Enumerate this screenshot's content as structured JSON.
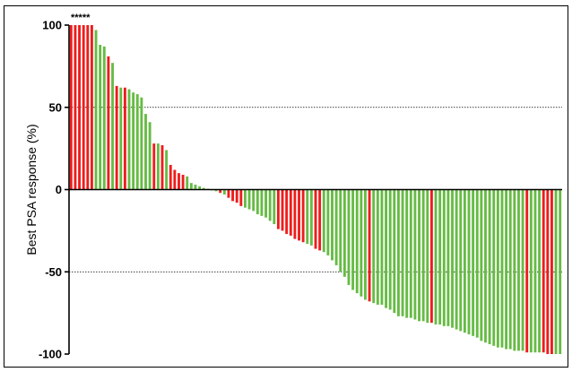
{
  "chart_data": {
    "type": "bar",
    "title": "",
    "xlabel": "",
    "ylabel": "Best PSA response (%)",
    "ylim": [
      -100,
      100
    ],
    "yticks": [
      "100",
      "50",
      "0",
      "-50",
      "-100"
    ],
    "ytick_values": [
      100,
      50,
      0,
      -50,
      -100
    ],
    "gridlines": [
      50,
      -50
    ],
    "annotation": "*****",
    "colors": {
      "red": "#ee1c1c",
      "green": "#66bb44"
    },
    "values": [
      100,
      100,
      100,
      100,
      100,
      100,
      97,
      88,
      87,
      81,
      77,
      63,
      62,
      62,
      61,
      59,
      58,
      56,
      46,
      41,
      28,
      28,
      27,
      24,
      15,
      12,
      10,
      9,
      8,
      4,
      3,
      2,
      1,
      0.5,
      -0.5,
      -1,
      -2,
      -3,
      -5,
      -7,
      -8,
      -10,
      -11,
      -12,
      -13,
      -15,
      -16,
      -17,
      -19,
      -21,
      -24,
      -25,
      -27,
      -28,
      -30,
      -31,
      -32,
      -33,
      -34,
      -36,
      -37,
      -38,
      -40,
      -43,
      -46,
      -50,
      -53,
      -58,
      -61,
      -63,
      -65,
      -67,
      -68,
      -69,
      -70,
      -70,
      -72,
      -73,
      -75,
      -77,
      -77,
      -78,
      -78,
      -79,
      -80,
      -80,
      -81,
      -81,
      -82,
      -82,
      -83,
      -83,
      -84,
      -85,
      -86,
      -87,
      -88,
      -89,
      -90,
      -92,
      -93,
      -94,
      -95,
      -96,
      -96,
      -97,
      -97,
      -98,
      -98,
      -98,
      -99,
      -99,
      -99,
      -99,
      -99,
      -100,
      -100,
      -100,
      -100
    ],
    "bar_colors": [
      "red",
      "red",
      "red",
      "red",
      "red",
      "red",
      "green",
      "green",
      "green",
      "red",
      "green",
      "red",
      "green",
      "red",
      "green",
      "green",
      "green",
      "green",
      "green",
      "green",
      "red",
      "green",
      "red",
      "green",
      "red",
      "red",
      "red",
      "red",
      "green",
      "green",
      "green",
      "green",
      "green",
      "green",
      "green",
      "green",
      "red",
      "green",
      "red",
      "red",
      "red",
      "red",
      "green",
      "green",
      "green",
      "green",
      "green",
      "green",
      "green",
      "green",
      "red",
      "red",
      "red",
      "red",
      "red",
      "red",
      "red",
      "green",
      "green",
      "red",
      "red",
      "green",
      "green",
      "green",
      "green",
      "green",
      "green",
      "green",
      "green",
      "green",
      "green",
      "green",
      "red",
      "green",
      "green",
      "green",
      "green",
      "green",
      "green",
      "green",
      "green",
      "green",
      "green",
      "green",
      "green",
      "green",
      "green",
      "red",
      "green",
      "green",
      "green",
      "green",
      "green",
      "green",
      "green",
      "green",
      "green",
      "green",
      "green",
      "green",
      "green",
      "green",
      "green",
      "green",
      "green",
      "green",
      "green",
      "green",
      "green",
      "green",
      "red",
      "green",
      "green",
      "green",
      "red",
      "red",
      "red",
      "green",
      "green"
    ]
  }
}
